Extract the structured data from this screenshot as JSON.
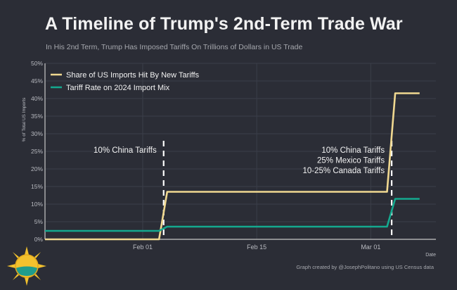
{
  "title": "A Timeline of Trump's 2nd-Term Trade War",
  "subtitle": "In His 2nd Term, Trump Has Imposed Tariffs On Trillions of Dollars in US Trade",
  "credit": "Graph created by @JosephPolitano using US Census data",
  "colors": {
    "background": "#2b2d36",
    "share_series": "#f0d890",
    "rate_series": "#14a98f",
    "grid": "#3b3e49",
    "axis": "#c8c8c8",
    "annotation_line": "#ffffff"
  },
  "chart_data": {
    "type": "line",
    "title": "A Timeline of Trump's 2nd-Term Trade War",
    "subtitle": "In His 2nd Term, Trump Has Imposed Tariffs On Trillions of Dollars in US Trade",
    "xlabel": "Date",
    "ylabel": "% of Total US Imports",
    "x_type": "date",
    "xlim": [
      "2025-01-20",
      "2025-03-09"
    ],
    "ylim": [
      0,
      50
    ],
    "x_ticks": [
      {
        "date": "2025-02-01",
        "label": "Feb 01"
      },
      {
        "date": "2025-02-15",
        "label": "Feb 15"
      },
      {
        "date": "2025-03-01",
        "label": "Mar 01"
      }
    ],
    "y_ticks": [
      "0%",
      "5%",
      "10%",
      "15%",
      "20%",
      "25%",
      "30%",
      "35%",
      "40%",
      "45%",
      "50%"
    ],
    "y_tick_values": [
      0,
      5,
      10,
      15,
      20,
      25,
      30,
      35,
      40,
      45,
      50
    ],
    "grid": true,
    "legend_position": "top-left",
    "series": [
      {
        "name": "Share of US Imports Hit By New Tariffs",
        "color": "#f0d890",
        "points": [
          {
            "x": "2025-01-20",
            "y": 0
          },
          {
            "x": "2025-02-03",
            "y": 0
          },
          {
            "x": "2025-02-04",
            "y": 13.5
          },
          {
            "x": "2025-03-03",
            "y": 13.5
          },
          {
            "x": "2025-03-04",
            "y": 41.5
          },
          {
            "x": "2025-03-07",
            "y": 41.5
          }
        ]
      },
      {
        "name": "Tariff Rate on 2024 Import Mix",
        "color": "#14a98f",
        "points": [
          {
            "x": "2025-01-20",
            "y": 2.4
          },
          {
            "x": "2025-02-03",
            "y": 2.4
          },
          {
            "x": "2025-02-04",
            "y": 3.6
          },
          {
            "x": "2025-03-03",
            "y": 3.6
          },
          {
            "x": "2025-03-04",
            "y": 11.5
          },
          {
            "x": "2025-03-07",
            "y": 11.5
          }
        ]
      }
    ],
    "annotations": [
      {
        "date": "2025-02-04",
        "lines": [
          "10% China Tariffs"
        ],
        "align": "right"
      },
      {
        "date": "2025-03-04",
        "lines": [
          "10% China Tariffs",
          "25% Mexico Tariffs",
          "10-25% Canada Tariffs"
        ],
        "align": "right"
      }
    ]
  }
}
